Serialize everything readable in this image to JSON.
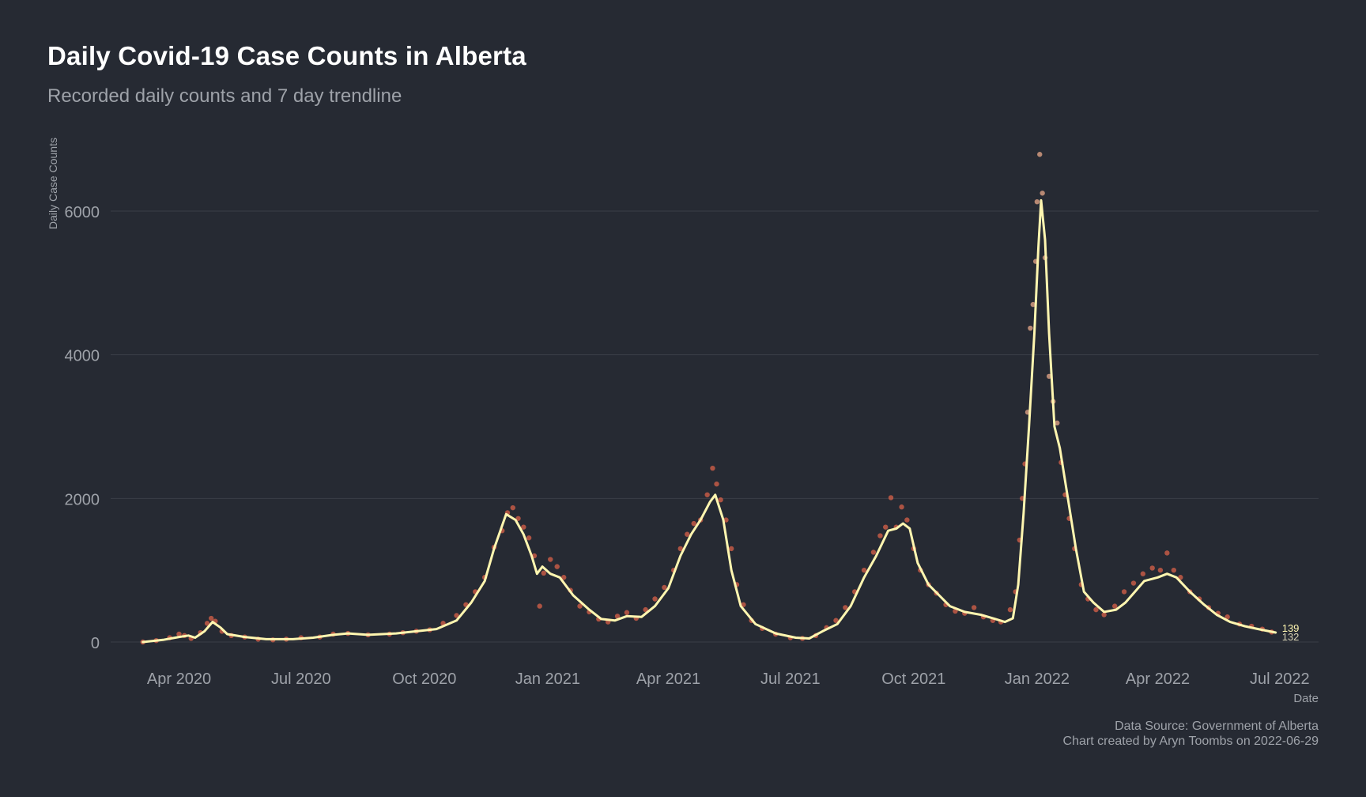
{
  "title": "Daily Covid-19 Case Counts in Alberta",
  "subtitle": "Recorded daily counts and 7 day trendline",
  "caption": {
    "source": "Data Source: Government of Alberta",
    "created": "Chart created by Aryn Toombs on 2022-06-29"
  },
  "colors": {
    "background": "#262a33",
    "points": "#d9614a",
    "trend": "#fff6b0",
    "grid": "#3a3e47",
    "text": "#9ea2a9"
  },
  "chart_data": {
    "type": "line",
    "xlabel": "Date",
    "ylabel": "Daily Case Counts",
    "xlim": [
      "2020-02-10",
      "2022-07-30"
    ],
    "ylim": [
      0,
      7200
    ],
    "grid": true,
    "x_ticks": [
      {
        "date": "2020-04-01",
        "label": "Apr 2020"
      },
      {
        "date": "2020-07-01",
        "label": "Jul 2020"
      },
      {
        "date": "2020-10-01",
        "label": "Oct 2020"
      },
      {
        "date": "2021-01-01",
        "label": "Jan 2021"
      },
      {
        "date": "2021-04-01",
        "label": "Apr 2021"
      },
      {
        "date": "2021-07-01",
        "label": "Jul 2021"
      },
      {
        "date": "2021-10-01",
        "label": "Oct 2021"
      },
      {
        "date": "2022-01-01",
        "label": "Jan 2022"
      },
      {
        "date": "2022-04-01",
        "label": "Apr 2022"
      },
      {
        "date": "2022-07-01",
        "label": "Jul 2022"
      }
    ],
    "y_ticks": [
      {
        "value": 0,
        "label": "0"
      },
      {
        "value": 2000,
        "label": "2000"
      },
      {
        "value": 4000,
        "label": "4000"
      },
      {
        "value": 6000,
        "label": "6000"
      }
    ],
    "series": [
      {
        "name": "Daily counts",
        "style": "points",
        "points": [
          [
            "2020-03-05",
            0
          ],
          [
            "2020-03-15",
            20
          ],
          [
            "2020-03-25",
            60
          ],
          [
            "2020-04-01",
            110
          ],
          [
            "2020-04-05",
            90
          ],
          [
            "2020-04-10",
            50
          ],
          [
            "2020-04-17",
            130
          ],
          [
            "2020-04-22",
            260
          ],
          [
            "2020-04-25",
            330
          ],
          [
            "2020-04-28",
            290
          ],
          [
            "2020-05-03",
            150
          ],
          [
            "2020-05-10",
            90
          ],
          [
            "2020-05-20",
            70
          ],
          [
            "2020-05-30",
            40
          ],
          [
            "2020-06-10",
            30
          ],
          [
            "2020-06-20",
            40
          ],
          [
            "2020-07-01",
            60
          ],
          [
            "2020-07-15",
            70
          ],
          [
            "2020-07-25",
            110
          ],
          [
            "2020-08-05",
            120
          ],
          [
            "2020-08-20",
            100
          ],
          [
            "2020-09-05",
            110
          ],
          [
            "2020-09-15",
            130
          ],
          [
            "2020-09-25",
            150
          ],
          [
            "2020-10-05",
            170
          ],
          [
            "2020-10-15",
            260
          ],
          [
            "2020-10-25",
            370
          ],
          [
            "2020-11-01",
            520
          ],
          [
            "2020-11-08",
            700
          ],
          [
            "2020-11-15",
            900
          ],
          [
            "2020-11-22",
            1320
          ],
          [
            "2020-11-28",
            1550
          ],
          [
            "2020-12-02",
            1800
          ],
          [
            "2020-12-06",
            1870
          ],
          [
            "2020-12-10",
            1720
          ],
          [
            "2020-12-14",
            1600
          ],
          [
            "2020-12-18",
            1450
          ],
          [
            "2020-12-22",
            1200
          ],
          [
            "2020-12-26",
            500
          ],
          [
            "2020-12-29",
            960
          ],
          [
            "2021-01-03",
            1150
          ],
          [
            "2021-01-08",
            1050
          ],
          [
            "2021-01-13",
            900
          ],
          [
            "2021-01-18",
            720
          ],
          [
            "2021-01-25",
            500
          ],
          [
            "2021-02-01",
            420
          ],
          [
            "2021-02-08",
            320
          ],
          [
            "2021-02-15",
            280
          ],
          [
            "2021-02-22",
            360
          ],
          [
            "2021-03-01",
            410
          ],
          [
            "2021-03-08",
            330
          ],
          [
            "2021-03-15",
            450
          ],
          [
            "2021-03-22",
            600
          ],
          [
            "2021-03-29",
            760
          ],
          [
            "2021-04-05",
            1000
          ],
          [
            "2021-04-10",
            1300
          ],
          [
            "2021-04-15",
            1500
          ],
          [
            "2021-04-20",
            1650
          ],
          [
            "2021-04-25",
            1700
          ],
          [
            "2021-04-30",
            2050
          ],
          [
            "2021-05-04",
            2420
          ],
          [
            "2021-05-07",
            2200
          ],
          [
            "2021-05-10",
            1980
          ],
          [
            "2021-05-14",
            1700
          ],
          [
            "2021-05-18",
            1300
          ],
          [
            "2021-05-22",
            800
          ],
          [
            "2021-05-27",
            520
          ],
          [
            "2021-06-02",
            300
          ],
          [
            "2021-06-10",
            190
          ],
          [
            "2021-06-20",
            110
          ],
          [
            "2021-07-01",
            60
          ],
          [
            "2021-07-10",
            50
          ],
          [
            "2021-07-20",
            90
          ],
          [
            "2021-07-28",
            200
          ],
          [
            "2021-08-04",
            300
          ],
          [
            "2021-08-11",
            480
          ],
          [
            "2021-08-18",
            700
          ],
          [
            "2021-08-25",
            1000
          ],
          [
            "2021-09-01",
            1250
          ],
          [
            "2021-09-06",
            1480
          ],
          [
            "2021-09-10",
            1600
          ],
          [
            "2021-09-14",
            2010
          ],
          [
            "2021-09-18",
            1600
          ],
          [
            "2021-09-22",
            1880
          ],
          [
            "2021-09-26",
            1700
          ],
          [
            "2021-10-01",
            1300
          ],
          [
            "2021-10-06",
            1000
          ],
          [
            "2021-10-12",
            800
          ],
          [
            "2021-10-18",
            680
          ],
          [
            "2021-10-25",
            520
          ],
          [
            "2021-11-01",
            430
          ],
          [
            "2021-11-08",
            400
          ],
          [
            "2021-11-15",
            480
          ],
          [
            "2021-11-22",
            350
          ],
          [
            "2021-11-29",
            300
          ],
          [
            "2021-12-05",
            280
          ],
          [
            "2021-12-12",
            450
          ],
          [
            "2021-12-16",
            700
          ],
          [
            "2021-12-19",
            1420
          ],
          [
            "2021-12-21",
            2000
          ],
          [
            "2021-12-23",
            2480
          ],
          [
            "2021-12-25",
            3200
          ],
          [
            "2021-12-27",
            4370
          ],
          [
            "2021-12-29",
            4700
          ],
          [
            "2021-12-31",
            5300
          ],
          [
            "2022-01-01",
            6130
          ],
          [
            "2022-01-03",
            6790
          ],
          [
            "2022-01-05",
            6250
          ],
          [
            "2022-01-07",
            5350
          ],
          [
            "2022-01-10",
            3700
          ],
          [
            "2022-01-13",
            3350
          ],
          [
            "2022-01-16",
            3050
          ],
          [
            "2022-01-19",
            2500
          ],
          [
            "2022-01-22",
            2050
          ],
          [
            "2022-01-25",
            1720
          ],
          [
            "2022-01-29",
            1300
          ],
          [
            "2022-02-03",
            800
          ],
          [
            "2022-02-08",
            600
          ],
          [
            "2022-02-14",
            450
          ],
          [
            "2022-02-20",
            380
          ],
          [
            "2022-02-28",
            500
          ],
          [
            "2022-03-07",
            700
          ],
          [
            "2022-03-14",
            820
          ],
          [
            "2022-03-21",
            950
          ],
          [
            "2022-03-28",
            1030
          ],
          [
            "2022-04-03",
            1000
          ],
          [
            "2022-04-08",
            1240
          ],
          [
            "2022-04-13",
            1000
          ],
          [
            "2022-04-18",
            900
          ],
          [
            "2022-04-25",
            700
          ],
          [
            "2022-05-02",
            600
          ],
          [
            "2022-05-09",
            480
          ],
          [
            "2022-05-16",
            400
          ],
          [
            "2022-05-23",
            350
          ],
          [
            "2022-06-01",
            250
          ],
          [
            "2022-06-10",
            220
          ],
          [
            "2022-06-18",
            180
          ],
          [
            "2022-06-25",
            139
          ]
        ]
      },
      {
        "name": "7 day trendline",
        "style": "line",
        "points": [
          [
            "2020-03-05",
            0
          ],
          [
            "2020-03-20",
            30
          ],
          [
            "2020-04-01",
            70
          ],
          [
            "2020-04-08",
            90
          ],
          [
            "2020-04-13",
            60
          ],
          [
            "2020-04-20",
            150
          ],
          [
            "2020-04-26",
            280
          ],
          [
            "2020-05-02",
            200
          ],
          [
            "2020-05-07",
            110
          ],
          [
            "2020-05-20",
            70
          ],
          [
            "2020-06-05",
            40
          ],
          [
            "2020-06-25",
            40
          ],
          [
            "2020-07-10",
            60
          ],
          [
            "2020-07-25",
            100
          ],
          [
            "2020-08-05",
            120
          ],
          [
            "2020-08-20",
            100
          ],
          [
            "2020-09-10",
            120
          ],
          [
            "2020-09-25",
            150
          ],
          [
            "2020-10-10",
            180
          ],
          [
            "2020-10-25",
            300
          ],
          [
            "2020-11-05",
            550
          ],
          [
            "2020-11-15",
            850
          ],
          [
            "2020-11-22",
            1300
          ],
          [
            "2020-12-01",
            1780
          ],
          [
            "2020-12-08",
            1700
          ],
          [
            "2020-12-14",
            1500
          ],
          [
            "2020-12-20",
            1200
          ],
          [
            "2020-12-24",
            950
          ],
          [
            "2020-12-28",
            1050
          ],
          [
            "2021-01-03",
            950
          ],
          [
            "2021-01-10",
            900
          ],
          [
            "2021-01-20",
            650
          ],
          [
            "2021-02-01",
            450
          ],
          [
            "2021-02-10",
            320
          ],
          [
            "2021-02-20",
            300
          ],
          [
            "2021-03-01",
            360
          ],
          [
            "2021-03-12",
            350
          ],
          [
            "2021-03-22",
            500
          ],
          [
            "2021-04-01",
            750
          ],
          [
            "2021-04-10",
            1200
          ],
          [
            "2021-04-18",
            1500
          ],
          [
            "2021-04-25",
            1700
          ],
          [
            "2021-05-02",
            1950
          ],
          [
            "2021-05-06",
            2050
          ],
          [
            "2021-05-12",
            1700
          ],
          [
            "2021-05-18",
            1000
          ],
          [
            "2021-05-25",
            500
          ],
          [
            "2021-06-05",
            250
          ],
          [
            "2021-06-20",
            120
          ],
          [
            "2021-07-05",
            60
          ],
          [
            "2021-07-15",
            50
          ],
          [
            "2021-07-25",
            150
          ],
          [
            "2021-08-05",
            250
          ],
          [
            "2021-08-15",
            500
          ],
          [
            "2021-08-25",
            900
          ],
          [
            "2021-09-03",
            1200
          ],
          [
            "2021-09-12",
            1550
          ],
          [
            "2021-09-18",
            1580
          ],
          [
            "2021-09-23",
            1650
          ],
          [
            "2021-09-28",
            1580
          ],
          [
            "2021-10-04",
            1100
          ],
          [
            "2021-10-12",
            800
          ],
          [
            "2021-10-20",
            650
          ],
          [
            "2021-10-28",
            500
          ],
          [
            "2021-11-08",
            420
          ],
          [
            "2021-11-20",
            380
          ],
          [
            "2021-12-01",
            320
          ],
          [
            "2021-12-08",
            280
          ],
          [
            "2021-12-14",
            330
          ],
          [
            "2021-12-18",
            800
          ],
          [
            "2021-12-22",
            1800
          ],
          [
            "2021-12-26",
            3000
          ],
          [
            "2021-12-30",
            4300
          ],
          [
            "2022-01-02",
            5500
          ],
          [
            "2022-01-04",
            6150
          ],
          [
            "2022-01-07",
            5600
          ],
          [
            "2022-01-10",
            4300
          ],
          [
            "2022-01-14",
            3000
          ],
          [
            "2022-01-18",
            2700
          ],
          [
            "2022-01-24",
            2000
          ],
          [
            "2022-01-30",
            1300
          ],
          [
            "2022-02-05",
            700
          ],
          [
            "2022-02-12",
            550
          ],
          [
            "2022-02-20",
            420
          ],
          [
            "2022-03-01",
            450
          ],
          [
            "2022-03-08",
            550
          ],
          [
            "2022-03-15",
            700
          ],
          [
            "2022-03-22",
            850
          ],
          [
            "2022-04-01",
            900
          ],
          [
            "2022-04-08",
            950
          ],
          [
            "2022-04-15",
            900
          ],
          [
            "2022-04-25",
            700
          ],
          [
            "2022-05-05",
            530
          ],
          [
            "2022-05-15",
            380
          ],
          [
            "2022-05-25",
            280
          ],
          [
            "2022-06-05",
            220
          ],
          [
            "2022-06-15",
            180
          ],
          [
            "2022-06-28",
            132
          ]
        ]
      }
    ],
    "end_labels": [
      {
        "series": "Daily counts",
        "value": 139,
        "label": "139"
      },
      {
        "series": "7 day trendline",
        "value": 132,
        "label": "132"
      }
    ]
  }
}
